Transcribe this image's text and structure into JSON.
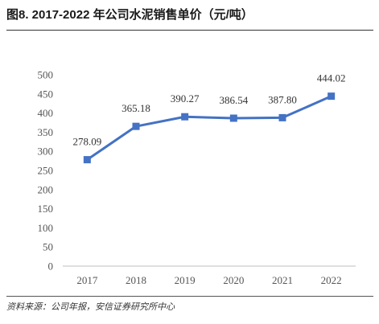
{
  "header": {
    "title": "图8. 2017-2022 年公司水泥销售单价（元/吨）"
  },
  "footer": {
    "source": "资料来源：公司年报，安信证券研究所中心"
  },
  "chart_data": {
    "type": "line",
    "title": "",
    "xlabel": "",
    "ylabel": "",
    "categories": [
      "2017",
      "2018",
      "2019",
      "2020",
      "2021",
      "2022"
    ],
    "series": [
      {
        "values": [
          278.09,
          365.18,
          390.27,
          386.54,
          387.8,
          444.02
        ]
      }
    ],
    "data_labels": [
      "278.09",
      "365.18",
      "390.27",
      "386.54",
      "387.80",
      "444.02"
    ],
    "ylim": [
      0,
      500
    ],
    "yticks": [
      0,
      50,
      100,
      150,
      200,
      250,
      300,
      350,
      400,
      450,
      500
    ],
    "grid": false,
    "legend": "none",
    "colors": {
      "line": "#4472C4",
      "marker": "#4472C4"
    },
    "marker": "square-marker"
  }
}
